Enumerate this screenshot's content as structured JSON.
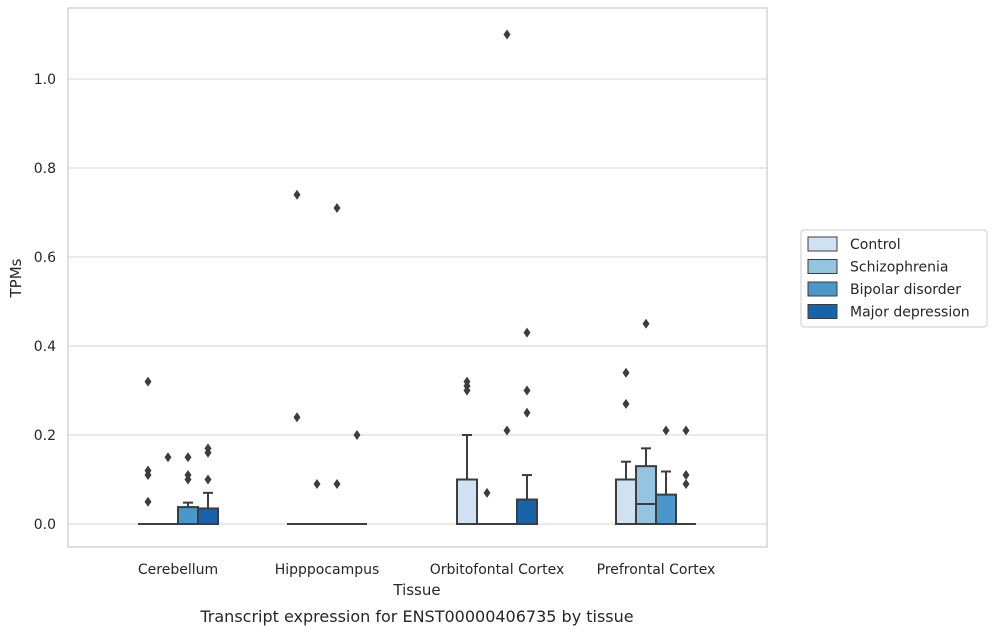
{
  "chart_data": {
    "type": "box",
    "xlabel": "Tissue",
    "ylabel": "TPMs",
    "caption": "Transcript expression for ENST00000406735 by tissue",
    "ylim": [
      -0.055,
      1.16
    ],
    "yticks": [
      0.0,
      0.2,
      0.4,
      0.6,
      0.8,
      1.0
    ],
    "ytick_labels": [
      "0.0",
      "0.2",
      "0.4",
      "0.6",
      "0.8",
      "1.0"
    ],
    "grid": "horizontal",
    "legend_position": "right",
    "categories": [
      "Cerebellum",
      "Hipppocampus",
      "Orbitofontal Cortex",
      "Prefrontal Cortex"
    ],
    "series": [
      {
        "name": "Control",
        "color": "#d0e1f2",
        "boxes": [
          {
            "q1": 0,
            "median": 0,
            "q3": 0,
            "whisker_low": 0,
            "whisker_high": 0,
            "outliers": [
              0.32,
              0.12,
              0.11,
              0.05
            ]
          },
          {
            "q1": 0,
            "median": 0,
            "q3": 0,
            "whisker_low": 0,
            "whisker_high": 0,
            "outliers": [
              0.74,
              0.24
            ]
          },
          {
            "q1": 0,
            "median": 0,
            "q3": 0.1,
            "whisker_low": 0,
            "whisker_high": 0.2,
            "outliers": [
              0.32,
              0.31,
              0.3
            ]
          },
          {
            "q1": 0,
            "median": 0,
            "q3": 0.1,
            "whisker_low": 0,
            "whisker_high": 0.14,
            "outliers": [
              0.34,
              0.27
            ]
          }
        ]
      },
      {
        "name": "Schizophrenia",
        "color": "#94c4df",
        "boxes": [
          {
            "q1": 0,
            "median": 0,
            "q3": 0,
            "whisker_low": 0,
            "whisker_high": 0,
            "outliers": [
              0.15
            ]
          },
          {
            "q1": 0,
            "median": 0,
            "q3": 0,
            "whisker_low": 0,
            "whisker_high": 0,
            "outliers": [
              0.09
            ]
          },
          {
            "q1": 0,
            "median": 0,
            "q3": 0,
            "whisker_low": 0,
            "whisker_high": 0,
            "outliers": [
              0.07
            ]
          },
          {
            "q1": 0,
            "median": 0.045,
            "q3": 0.13,
            "whisker_low": 0,
            "whisker_high": 0.17,
            "outliers": [
              0.45
            ]
          }
        ]
      },
      {
        "name": "Bipolar disorder",
        "color": "#4a98c9",
        "boxes": [
          {
            "q1": 0,
            "median": 0,
            "q3": 0.038,
            "whisker_low": 0,
            "whisker_high": 0.048,
            "outliers": [
              0.15,
              0.11,
              0.1
            ]
          },
          {
            "q1": 0,
            "median": 0,
            "q3": 0,
            "whisker_low": 0,
            "whisker_high": 0,
            "outliers": [
              0.71,
              0.09
            ]
          },
          {
            "q1": 0,
            "median": 0,
            "q3": 0,
            "whisker_low": 0,
            "whisker_high": 0,
            "outliers": [
              1.1,
              0.21
            ]
          },
          {
            "q1": 0,
            "median": 0,
            "q3": 0.066,
            "whisker_low": 0,
            "whisker_high": 0.118,
            "outliers": [
              0.21
            ]
          }
        ]
      },
      {
        "name": "Major depression",
        "color": "#1764ab",
        "boxes": [
          {
            "q1": 0,
            "median": 0,
            "q3": 0.035,
            "whisker_low": 0,
            "whisker_high": 0.07,
            "outliers": [
              0.17,
              0.16,
              0.1
            ]
          },
          {
            "q1": 0,
            "median": 0,
            "q3": 0,
            "whisker_low": 0,
            "whisker_high": 0,
            "outliers": [
              0.2
            ]
          },
          {
            "q1": 0,
            "median": 0,
            "q3": 0.055,
            "whisker_low": 0,
            "whisker_high": 0.11,
            "outliers": [
              0.43,
              0.3,
              0.25
            ]
          },
          {
            "q1": 0,
            "median": 0,
            "q3": 0,
            "whisker_low": 0,
            "whisker_high": 0,
            "outliers": [
              0.21,
              0.11,
              0.09
            ]
          }
        ]
      }
    ]
  }
}
